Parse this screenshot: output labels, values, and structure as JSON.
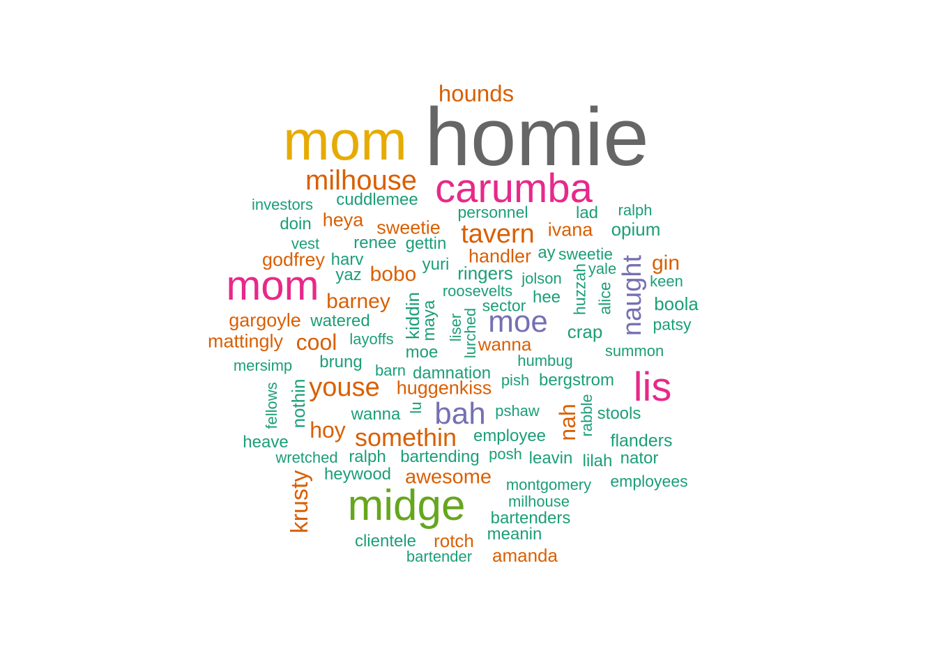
{
  "palette": {
    "green": "#1b9e77",
    "orange": "#d95f02",
    "purple": "#7570b3",
    "pink": "#e7298a",
    "lime": "#66a61e",
    "gold": "#e6ab02",
    "gray": "#666666"
  },
  "words": [
    {
      "text": "homie",
      "color": "gray"
    },
    {
      "text": "mom",
      "color": "gold"
    },
    {
      "text": "hounds",
      "color": "orange"
    },
    {
      "text": "carumba",
      "color": "pink"
    },
    {
      "text": "milhouse",
      "color": "orange"
    },
    {
      "text": "investors",
      "color": "green"
    },
    {
      "text": "cuddlemee",
      "color": "green"
    },
    {
      "text": "personnel",
      "color": "green"
    },
    {
      "text": "lad",
      "color": "green"
    },
    {
      "text": "ralph",
      "color": "green"
    },
    {
      "text": "doin",
      "color": "green"
    },
    {
      "text": "heya",
      "color": "orange"
    },
    {
      "text": "sweetie",
      "color": "orange"
    },
    {
      "text": "tavern",
      "color": "orange"
    },
    {
      "text": "ivana",
      "color": "orange"
    },
    {
      "text": "opium",
      "color": "green"
    },
    {
      "text": "vest",
      "color": "green"
    },
    {
      "text": "renee",
      "color": "green"
    },
    {
      "text": "gettin",
      "color": "green"
    },
    {
      "text": "handler",
      "color": "orange"
    },
    {
      "text": "ay",
      "color": "green"
    },
    {
      "text": "sweetie",
      "color": "green"
    },
    {
      "text": "godfrey",
      "color": "orange"
    },
    {
      "text": "harv",
      "color": "green"
    },
    {
      "text": "yuri",
      "color": "green"
    },
    {
      "text": "yale",
      "color": "green"
    },
    {
      "text": "gin",
      "color": "orange"
    },
    {
      "text": "mom",
      "color": "pink"
    },
    {
      "text": "yaz",
      "color": "green"
    },
    {
      "text": "bobo",
      "color": "orange"
    },
    {
      "text": "ringers",
      "color": "green"
    },
    {
      "text": "jolson",
      "color": "green"
    },
    {
      "text": "huzzah",
      "color": "green",
      "vertical": true
    },
    {
      "text": "naught",
      "color": "purple",
      "vertical": true
    },
    {
      "text": "keen",
      "color": "green"
    },
    {
      "text": "roosevelts",
      "color": "green"
    },
    {
      "text": "alice",
      "color": "green",
      "vertical": true
    },
    {
      "text": "barney",
      "color": "orange"
    },
    {
      "text": "kiddin",
      "color": "green",
      "vertical": true
    },
    {
      "text": "maya",
      "color": "green",
      "vertical": true
    },
    {
      "text": "sector",
      "color": "green"
    },
    {
      "text": "hee",
      "color": "green"
    },
    {
      "text": "boola",
      "color": "green"
    },
    {
      "text": "gargoyle",
      "color": "orange"
    },
    {
      "text": "watered",
      "color": "green"
    },
    {
      "text": "liser",
      "color": "green",
      "vertical": true
    },
    {
      "text": "lurched",
      "color": "green",
      "vertical": true
    },
    {
      "text": "moe",
      "color": "purple"
    },
    {
      "text": "patsy",
      "color": "green"
    },
    {
      "text": "crap",
      "color": "green"
    },
    {
      "text": "mattingly",
      "color": "orange"
    },
    {
      "text": "cool",
      "color": "orange"
    },
    {
      "text": "layoffs",
      "color": "green"
    },
    {
      "text": "wanna",
      "color": "orange"
    },
    {
      "text": "moe",
      "color": "green"
    },
    {
      "text": "summon",
      "color": "green"
    },
    {
      "text": "mersimp",
      "color": "green"
    },
    {
      "text": "brung",
      "color": "green"
    },
    {
      "text": "humbug",
      "color": "green"
    },
    {
      "text": "barn",
      "color": "green"
    },
    {
      "text": "damnation",
      "color": "green"
    },
    {
      "text": "lis",
      "color": "pink"
    },
    {
      "text": "youse",
      "color": "orange"
    },
    {
      "text": "huggenkiss",
      "color": "orange"
    },
    {
      "text": "pish",
      "color": "green"
    },
    {
      "text": "bergstrom",
      "color": "green"
    },
    {
      "text": "fellows",
      "color": "green",
      "vertical": true
    },
    {
      "text": "nothin",
      "color": "green",
      "vertical": true
    },
    {
      "text": "lu",
      "color": "green",
      "vertical": true
    },
    {
      "text": "rabble",
      "color": "green",
      "vertical": true
    },
    {
      "text": "bah",
      "color": "purple"
    },
    {
      "text": "pshaw",
      "color": "green"
    },
    {
      "text": "nah",
      "color": "orange",
      "vertical": true
    },
    {
      "text": "stools",
      "color": "green"
    },
    {
      "text": "wanna",
      "color": "green"
    },
    {
      "text": "hoy",
      "color": "orange"
    },
    {
      "text": "somethin",
      "color": "orange"
    },
    {
      "text": "employee",
      "color": "green"
    },
    {
      "text": "flanders",
      "color": "green"
    },
    {
      "text": "heave",
      "color": "green"
    },
    {
      "text": "wretched",
      "color": "green"
    },
    {
      "text": "ralph",
      "color": "green"
    },
    {
      "text": "bartending",
      "color": "green"
    },
    {
      "text": "posh",
      "color": "green"
    },
    {
      "text": "leavin",
      "color": "green"
    },
    {
      "text": "lilah",
      "color": "green"
    },
    {
      "text": "nator",
      "color": "green"
    },
    {
      "text": "krusty",
      "color": "orange",
      "vertical": true
    },
    {
      "text": "heywood",
      "color": "green"
    },
    {
      "text": "awesome",
      "color": "orange"
    },
    {
      "text": "montgomery",
      "color": "green"
    },
    {
      "text": "employees",
      "color": "green"
    },
    {
      "text": "midge",
      "color": "lime"
    },
    {
      "text": "milhouse",
      "color": "green"
    },
    {
      "text": "bartenders",
      "color": "green"
    },
    {
      "text": "clientele",
      "color": "green"
    },
    {
      "text": "rotch",
      "color": "orange"
    },
    {
      "text": "meanin",
      "color": "green"
    },
    {
      "text": "bartender",
      "color": "green"
    },
    {
      "text": "amanda",
      "color": "orange"
    }
  ]
}
